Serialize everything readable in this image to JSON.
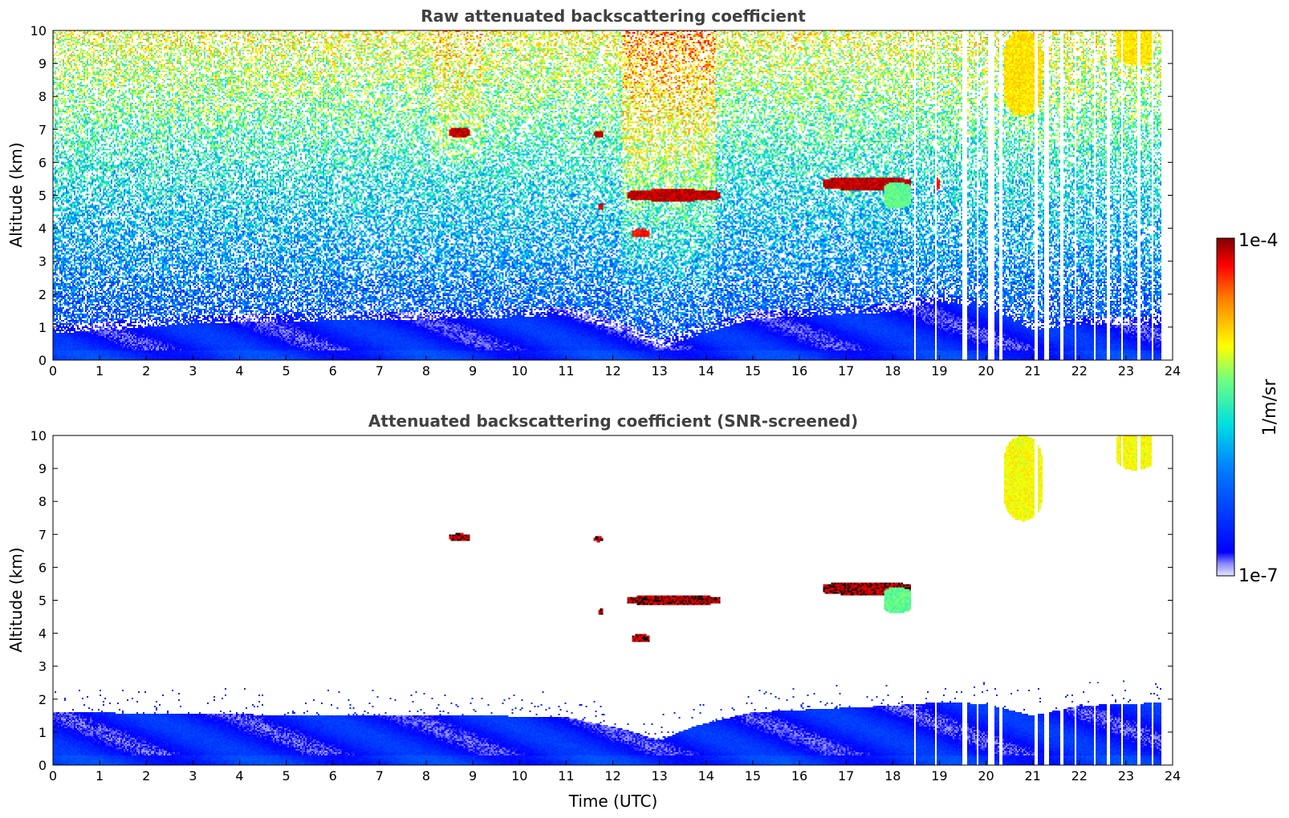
{
  "chart_data": [
    {
      "type": "heatmap",
      "title": "Raw attenuated backscattering coefficient",
      "xlabel": "",
      "ylabel": "Altitude (km)",
      "xlim": [
        0,
        24
      ],
      "ylim": [
        0,
        10
      ],
      "xticks": [
        0,
        1,
        2,
        3,
        4,
        5,
        6,
        7,
        8,
        9,
        10,
        11,
        12,
        13,
        14,
        15,
        16,
        17,
        18,
        19,
        20,
        21,
        22,
        23,
        24
      ],
      "yticks": [
        0,
        1,
        2,
        3,
        4,
        5,
        6,
        7,
        8,
        9,
        10
      ],
      "noise": "high",
      "boundary_layer": [
        [
          0,
          1.05
        ],
        [
          3,
          1.35
        ],
        [
          6,
          1.45
        ],
        [
          9,
          1.5
        ],
        [
          11,
          1.6
        ],
        [
          12.3,
          1.1
        ],
        [
          13,
          0.6
        ],
        [
          13.8,
          1.0
        ],
        [
          15,
          1.5
        ],
        [
          18,
          1.7
        ],
        [
          19,
          2.0
        ],
        [
          20,
          1.85
        ],
        [
          21,
          1.15
        ],
        [
          22,
          1.3
        ],
        [
          24,
          1.35
        ]
      ],
      "features": [
        {
          "x0": 8.5,
          "x1": 8.95,
          "alt": 6.9,
          "thick": 0.15,
          "level": 1.0
        },
        {
          "x0": 11.6,
          "x1": 11.8,
          "alt": 6.85,
          "thick": 0.1,
          "level": 1.0
        },
        {
          "x0": 12.3,
          "x1": 14.3,
          "alt": 5.0,
          "thick": 0.18,
          "level": 1.0
        },
        {
          "x0": 11.7,
          "x1": 11.8,
          "alt": 4.65,
          "thick": 0.1,
          "level": 1.0
        },
        {
          "x0": 12.4,
          "x1": 12.8,
          "alt": 3.85,
          "thick": 0.12,
          "level": 0.95
        },
        {
          "x0": 16.5,
          "x1": 18.4,
          "alt": 5.35,
          "thick": 0.2,
          "level": 1.0
        },
        {
          "x0": 17.8,
          "x1": 18.4,
          "alt": 5.0,
          "thick": 0.4,
          "level": 0.6
        },
        {
          "x0": 18.9,
          "x1": 19.0,
          "alt": 5.35,
          "thick": 0.2,
          "level": 0.95
        },
        {
          "x0": 20.4,
          "x1": 21.2,
          "alt": 8.7,
          "thick": 1.3,
          "level": 0.75
        },
        {
          "x0": 22.8,
          "x1": 23.6,
          "alt": 9.55,
          "thick": 0.6,
          "level": 0.75
        }
      ],
      "gaps": [
        [
          18.45,
          18.5
        ],
        [
          18.9,
          18.95
        ],
        [
          19.5,
          19.6
        ],
        [
          19.8,
          19.85
        ],
        [
          20.05,
          20.2
        ],
        [
          20.3,
          20.35
        ],
        [
          21.05,
          21.1
        ],
        [
          21.25,
          21.35
        ],
        [
          21.6,
          21.65
        ],
        [
          21.9,
          21.95
        ],
        [
          22.3,
          22.35
        ],
        [
          22.6,
          22.65
        ],
        [
          22.9,
          22.95
        ],
        [
          23.25,
          23.3
        ],
        [
          23.55,
          23.6
        ]
      ]
    },
    {
      "type": "heatmap",
      "title": "Attenuated backscattering coefficient (SNR-screened)",
      "xlabel": "Time (UTC)",
      "ylabel": "Altitude (km)",
      "xlim": [
        0,
        24
      ],
      "ylim": [
        0,
        10
      ],
      "xticks": [
        0,
        1,
        2,
        3,
        4,
        5,
        6,
        7,
        8,
        9,
        10,
        11,
        12,
        13,
        14,
        15,
        16,
        17,
        18,
        19,
        20,
        21,
        22,
        23,
        24
      ],
      "yticks": [
        0,
        1,
        2,
        3,
        4,
        5,
        6,
        7,
        8,
        9,
        10
      ],
      "noise": "screened",
      "boundary_layer": [
        [
          0,
          1.6
        ],
        [
          3,
          1.55
        ],
        [
          6,
          1.5
        ],
        [
          9,
          1.5
        ],
        [
          11,
          1.45
        ],
        [
          12.2,
          1.1
        ],
        [
          13,
          0.75
        ],
        [
          13.8,
          1.2
        ],
        [
          15,
          1.6
        ],
        [
          18,
          1.8
        ],
        [
          19,
          1.9
        ],
        [
          20,
          1.85
        ],
        [
          21,
          1.5
        ],
        [
          22,
          1.8
        ],
        [
          24,
          1.9
        ]
      ],
      "features": [
        {
          "x0": 8.5,
          "x1": 8.95,
          "alt": 6.9,
          "thick": 0.12,
          "level": 1.0
        },
        {
          "x0": 11.6,
          "x1": 11.8,
          "alt": 6.85,
          "thick": 0.08,
          "level": 1.0
        },
        {
          "x0": 12.3,
          "x1": 14.3,
          "alt": 5.0,
          "thick": 0.15,
          "level": 1.0
        },
        {
          "x0": 11.7,
          "x1": 11.8,
          "alt": 4.65,
          "thick": 0.1,
          "level": 1.0
        },
        {
          "x0": 12.4,
          "x1": 12.8,
          "alt": 3.85,
          "thick": 0.12,
          "level": 1.0
        },
        {
          "x0": 16.5,
          "x1": 18.4,
          "alt": 5.35,
          "thick": 0.2,
          "level": 1.0
        },
        {
          "x0": 17.8,
          "x1": 18.4,
          "alt": 5.0,
          "thick": 0.4,
          "level": 0.6
        },
        {
          "x0": 20.4,
          "x1": 21.2,
          "alt": 8.7,
          "thick": 1.3,
          "level": 0.72
        },
        {
          "x0": 22.8,
          "x1": 23.6,
          "alt": 9.55,
          "thick": 0.6,
          "level": 0.72
        }
      ],
      "gaps": [
        [
          18.45,
          18.5
        ],
        [
          18.9,
          18.95
        ],
        [
          19.5,
          19.6
        ],
        [
          19.8,
          19.85
        ],
        [
          20.05,
          20.2
        ],
        [
          20.3,
          20.35
        ],
        [
          21.05,
          21.1
        ],
        [
          21.25,
          21.35
        ],
        [
          21.6,
          21.65
        ],
        [
          21.9,
          21.95
        ],
        [
          22.3,
          22.35
        ],
        [
          22.6,
          22.65
        ],
        [
          22.9,
          22.95
        ],
        [
          23.25,
          23.3
        ],
        [
          23.55,
          23.6
        ]
      ]
    }
  ],
  "colorbar": {
    "label": "1/m/sr",
    "max_label": "1e-4",
    "min_label": "1e-7",
    "colormap": "jet"
  }
}
